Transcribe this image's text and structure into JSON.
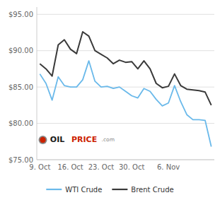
{
  "chart_data": {
    "type": "line",
    "categories": [
      "9. Oct",
      null,
      null,
      null,
      null,
      "16. Oct",
      null,
      null,
      null,
      null,
      "23. Oct",
      null,
      null,
      null,
      null,
      "30. Oct",
      null,
      null,
      null,
      null,
      null,
      "6. Nov",
      null,
      null,
      null,
      null,
      null,
      null,
      null
    ],
    "series": [
      {
        "name": "WTI Crude",
        "color": "#6ab9ea",
        "values": [
          86.8,
          85.5,
          83.2,
          86.4,
          85.2,
          85.0,
          85.0,
          86.0,
          88.6,
          85.8,
          85.0,
          85.1,
          84.8,
          85.0,
          84.4,
          83.8,
          83.5,
          84.8,
          84.4,
          83.3,
          82.4,
          82.8,
          85.2,
          83.0,
          81.2,
          80.5,
          80.5,
          80.4,
          76.8
        ]
      },
      {
        "name": "Brent Crude",
        "color": "#3a3a3a",
        "values": [
          88.2,
          87.5,
          86.5,
          90.8,
          91.5,
          90.2,
          89.6,
          92.6,
          92.0,
          90.0,
          89.5,
          89.0,
          88.2,
          88.7,
          88.4,
          88.5,
          87.5,
          88.6,
          87.5,
          85.5,
          84.9,
          85.1,
          86.8,
          85.2,
          84.7,
          84.6,
          84.5,
          84.3,
          82.5
        ]
      }
    ],
    "ylim": [
      75.0,
      96.0
    ],
    "yticks": [
      {
        "value": 75.0,
        "label": "$75.00"
      },
      {
        "value": 80.0,
        "label": "$80.00"
      },
      {
        "value": 85.0,
        "label": "$85.00"
      },
      {
        "value": 90.0,
        "label": "$90.00"
      },
      {
        "value": 95.0,
        "label": "$95.00"
      }
    ],
    "grid": true,
    "legend": "bottom",
    "annotations": [
      "OIL",
      "PRICE",
      ".com"
    ]
  }
}
